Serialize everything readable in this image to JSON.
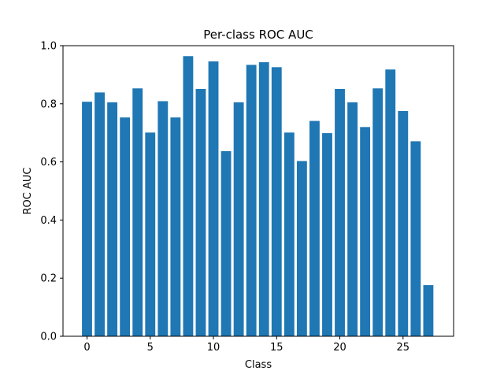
{
  "chart_data": {
    "type": "bar",
    "title": "Per-class ROC AUC",
    "xlabel": "Class",
    "ylabel": "ROC AUC",
    "x": [
      0,
      1,
      2,
      3,
      4,
      5,
      6,
      7,
      8,
      9,
      10,
      11,
      12,
      13,
      14,
      15,
      16,
      17,
      18,
      19,
      20,
      21,
      22,
      23,
      24,
      25,
      26,
      27
    ],
    "values": [
      0.807,
      0.839,
      0.805,
      0.753,
      0.853,
      0.701,
      0.809,
      0.753,
      0.964,
      0.851,
      0.946,
      0.637,
      0.805,
      0.934,
      0.943,
      0.926,
      0.701,
      0.603,
      0.741,
      0.699,
      0.851,
      0.805,
      0.72,
      0.853,
      0.918,
      0.775,
      0.671,
      0.176
    ],
    "xlim": [
      -1.9,
      29.0
    ],
    "ylim": [
      0,
      1.0
    ],
    "xticks": [
      0,
      5,
      10,
      15,
      20,
      25
    ],
    "xtick_labels": [
      "0",
      "5",
      "10",
      "15",
      "20",
      "25"
    ],
    "yticks": [
      0.0,
      0.2,
      0.4,
      0.6,
      0.8,
      1.0
    ],
    "ytick_labels": [
      "0.0",
      "0.2",
      "0.4",
      "0.6",
      "0.8",
      "1.0"
    ],
    "bar_color": "#1f77b4",
    "grid": false,
    "legend": false
  }
}
